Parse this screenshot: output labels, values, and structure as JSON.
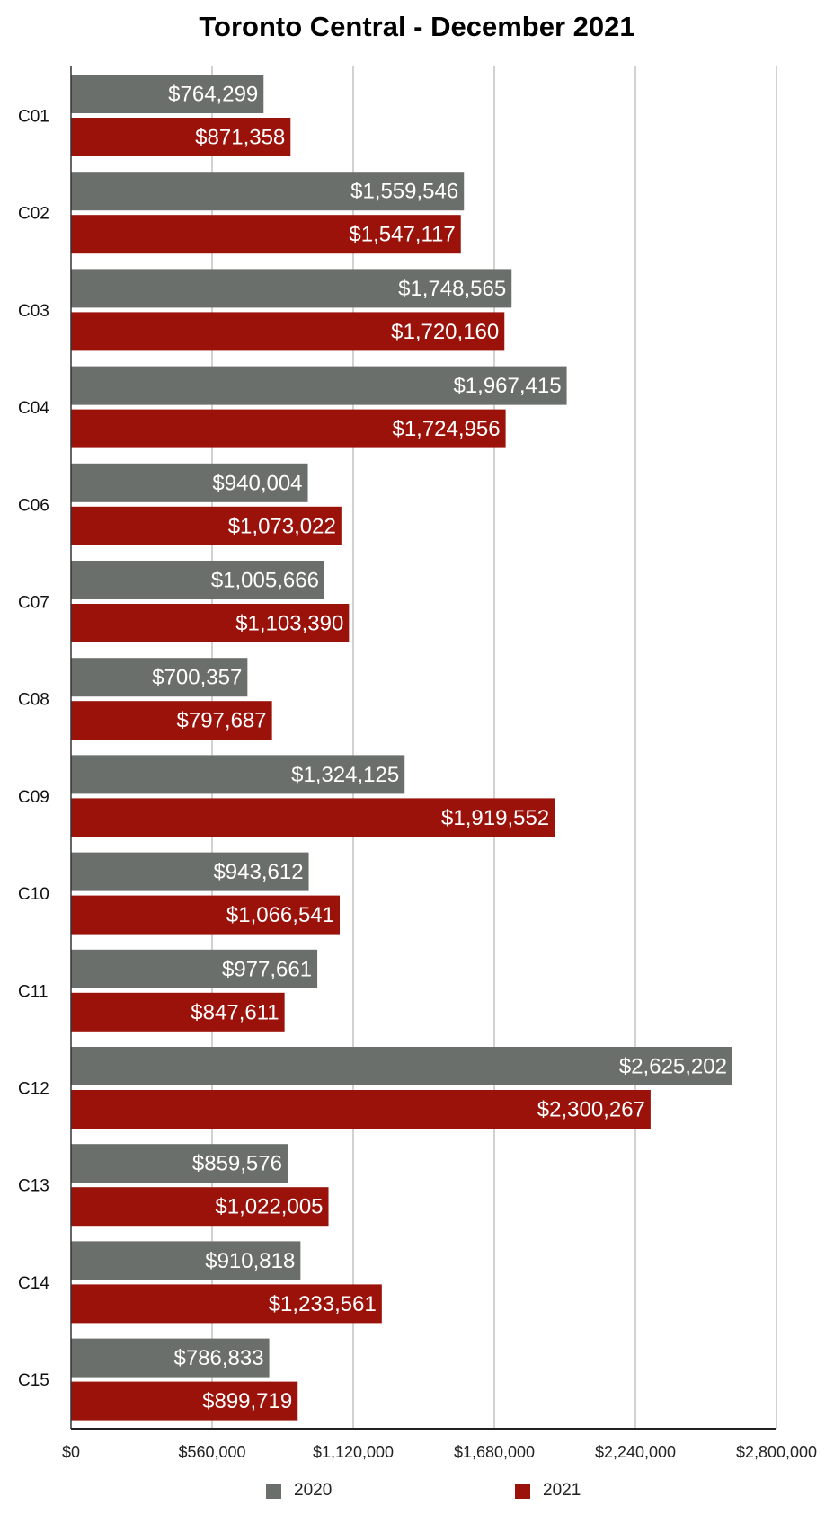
{
  "chart_data": {
    "type": "bar",
    "orientation": "horizontal",
    "title": "Toronto Central - December 2021",
    "xlabel": "",
    "ylabel": "",
    "categories": [
      "C01",
      "C02",
      "C03",
      "C04",
      "C06",
      "C07",
      "C08",
      "C09",
      "C10",
      "C11",
      "C12",
      "C13",
      "C14",
      "C15"
    ],
    "series": [
      {
        "name": "2020",
        "color": "#6b6f6c",
        "values": [
          764299,
          1559546,
          1748565,
          1967415,
          940004,
          1005666,
          700357,
          1324125,
          943612,
          977661,
          2625202,
          859576,
          910818,
          786833
        ],
        "labels": [
          "$764,299",
          "$1,559,546",
          "$1,748,565",
          "$1,967,415",
          "$940,004",
          "$1,005,666",
          "$700,357",
          "$1,324,125",
          "$943,612",
          "$977,661",
          "$2,625,202",
          "$859,576",
          "$910,818",
          "$786,833"
        ]
      },
      {
        "name": "2021",
        "color": "#9b120b",
        "values": [
          871358,
          1547117,
          1720160,
          1724956,
          1073022,
          1103390,
          797687,
          1919552,
          1066541,
          847611,
          2300267,
          1022005,
          1233561,
          899719
        ],
        "labels": [
          "$871,358",
          "$1,547,117",
          "$1,720,160",
          "$1,724,956",
          "$1,073,022",
          "$1,103,390",
          "$797,687",
          "$1,919,552",
          "$1,066,541",
          "$847,611",
          "$2,300,267",
          "$1,022,005",
          "$1,233,561",
          "$899,719"
        ]
      }
    ],
    "xlim": [
      0,
      2800000
    ],
    "xticks": [
      0,
      560000,
      1120000,
      1680000,
      2240000,
      2800000
    ],
    "xtick_labels": [
      "$0",
      "$560,000",
      "$1,120,000",
      "$1,680,000",
      "$2,240,000",
      "$2,800,000"
    ],
    "grid": "vertical",
    "legend": "bottom"
  }
}
